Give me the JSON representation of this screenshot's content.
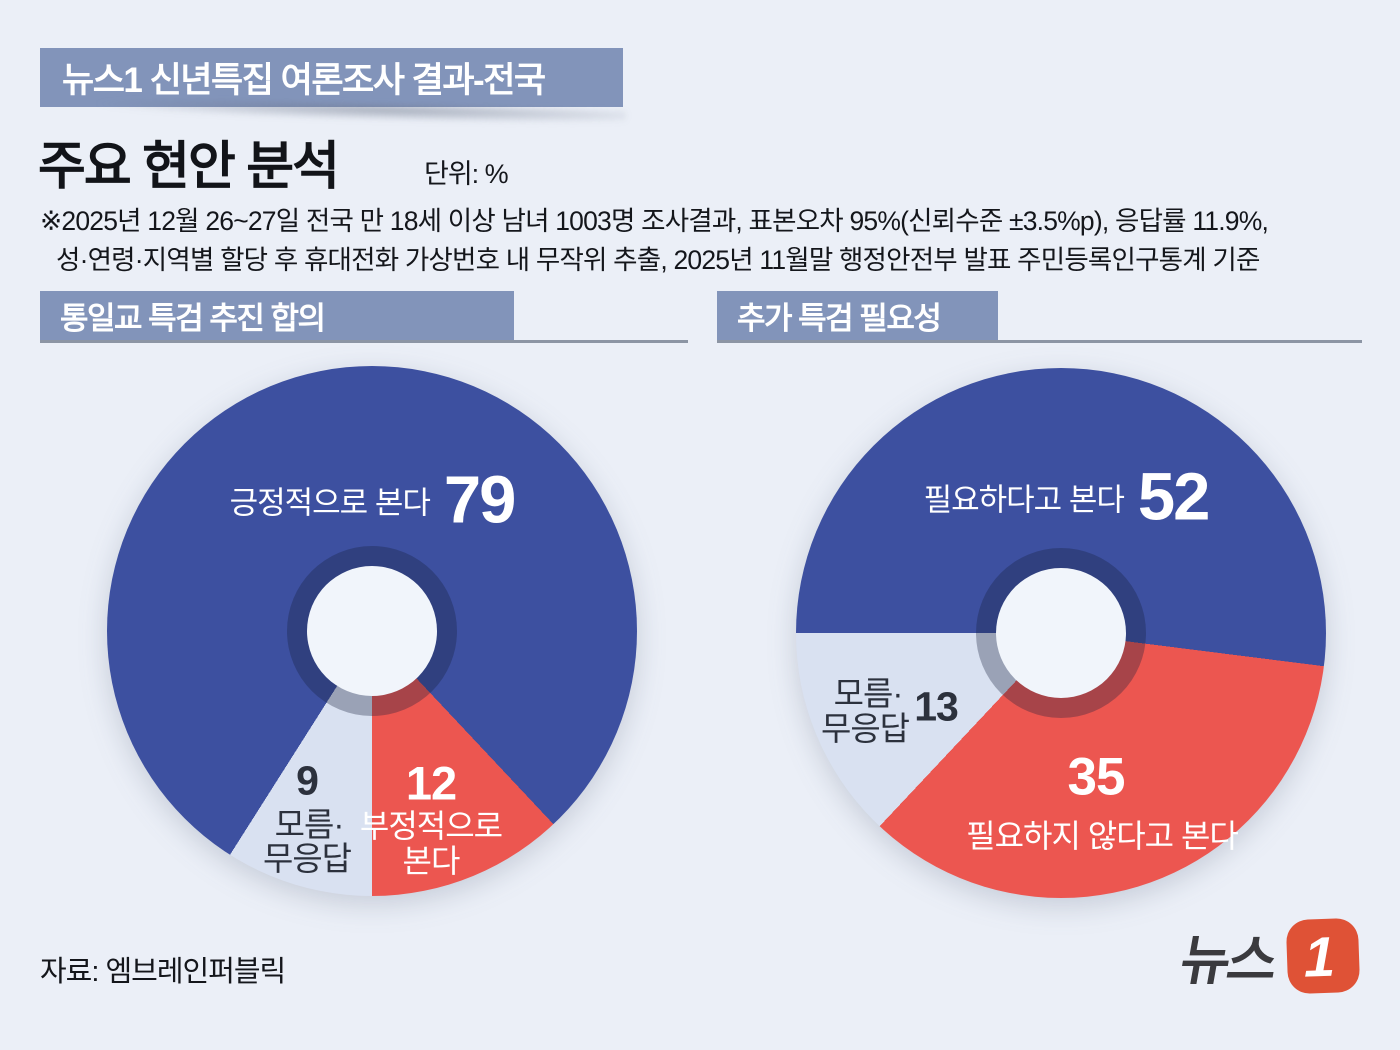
{
  "colors": {
    "background": "#ebeff7",
    "band": "#8294ba",
    "underline": "#8c95a4",
    "positive_blue": "#3d50a0",
    "negative_red": "#ec5650",
    "unknown_light": "#d9e1f1",
    "donut_hole": "#f1f5fb",
    "logo_orange": "#df5236",
    "logo_dark": "#3a3a3e"
  },
  "header": {
    "banner": "뉴스1 신년특집 여론조사 결과-전국",
    "title": "주요 현안 분석",
    "unit_label": "단위: %",
    "note_line1": "※2025년 12월 26~27일 전국 만 18세 이상 남녀 1003명 조사결과, 표본오차 95%(신뢰수준 ±3.5%p), 응답률  11.9%,",
    "note_line2": "성·연령·지역별 할당 후 휴대전화 가상번호 내 무작위 추출,  2025년 11월말 행정안전부 발표 주민등록인구통계 기준"
  },
  "sections": {
    "left_title": "통일교 특검 추진 합의",
    "right_title": "추가 특검 필요성"
  },
  "footer": {
    "source": "자료: 엠브레인퍼블릭",
    "logo_text": "뉴스",
    "logo_number": "1"
  },
  "chart_data": [
    {
      "type": "pie",
      "variant": "donut",
      "title": "통일교 특검 추진 합의",
      "unit": "%",
      "start_angle": 212.4,
      "slices": [
        {
          "label": "긍정적으로 본다",
          "value": 79,
          "color": "#3d50a0",
          "text_color": "#ffffff"
        },
        {
          "label": "부정적으로 본다",
          "label_line1": "부정적으로",
          "label_line2": "본다",
          "value": 12,
          "color": "#ec5650",
          "text_color": "#ffffff"
        },
        {
          "label": "모름·무응답",
          "label_line1": "모름·",
          "label_line2": "무응답",
          "value": 9,
          "color": "#d9e1f1",
          "text_color": "#2c313d"
        }
      ]
    },
    {
      "type": "pie",
      "variant": "donut",
      "title": "추가 특검 필요성",
      "unit": "%",
      "start_angle": 270,
      "slices": [
        {
          "label": "필요하다고 본다",
          "value": 52,
          "color": "#3d50a0",
          "text_color": "#ffffff"
        },
        {
          "label": "필요하지 않다고 본다",
          "value": 35,
          "color": "#ec5650",
          "text_color": "#ffffff"
        },
        {
          "label": "모름·무응답",
          "label_line1": "모름·",
          "label_line2": "무응답",
          "value": 13,
          "color": "#d9e1f1",
          "text_color": "#2c313d"
        }
      ]
    }
  ]
}
